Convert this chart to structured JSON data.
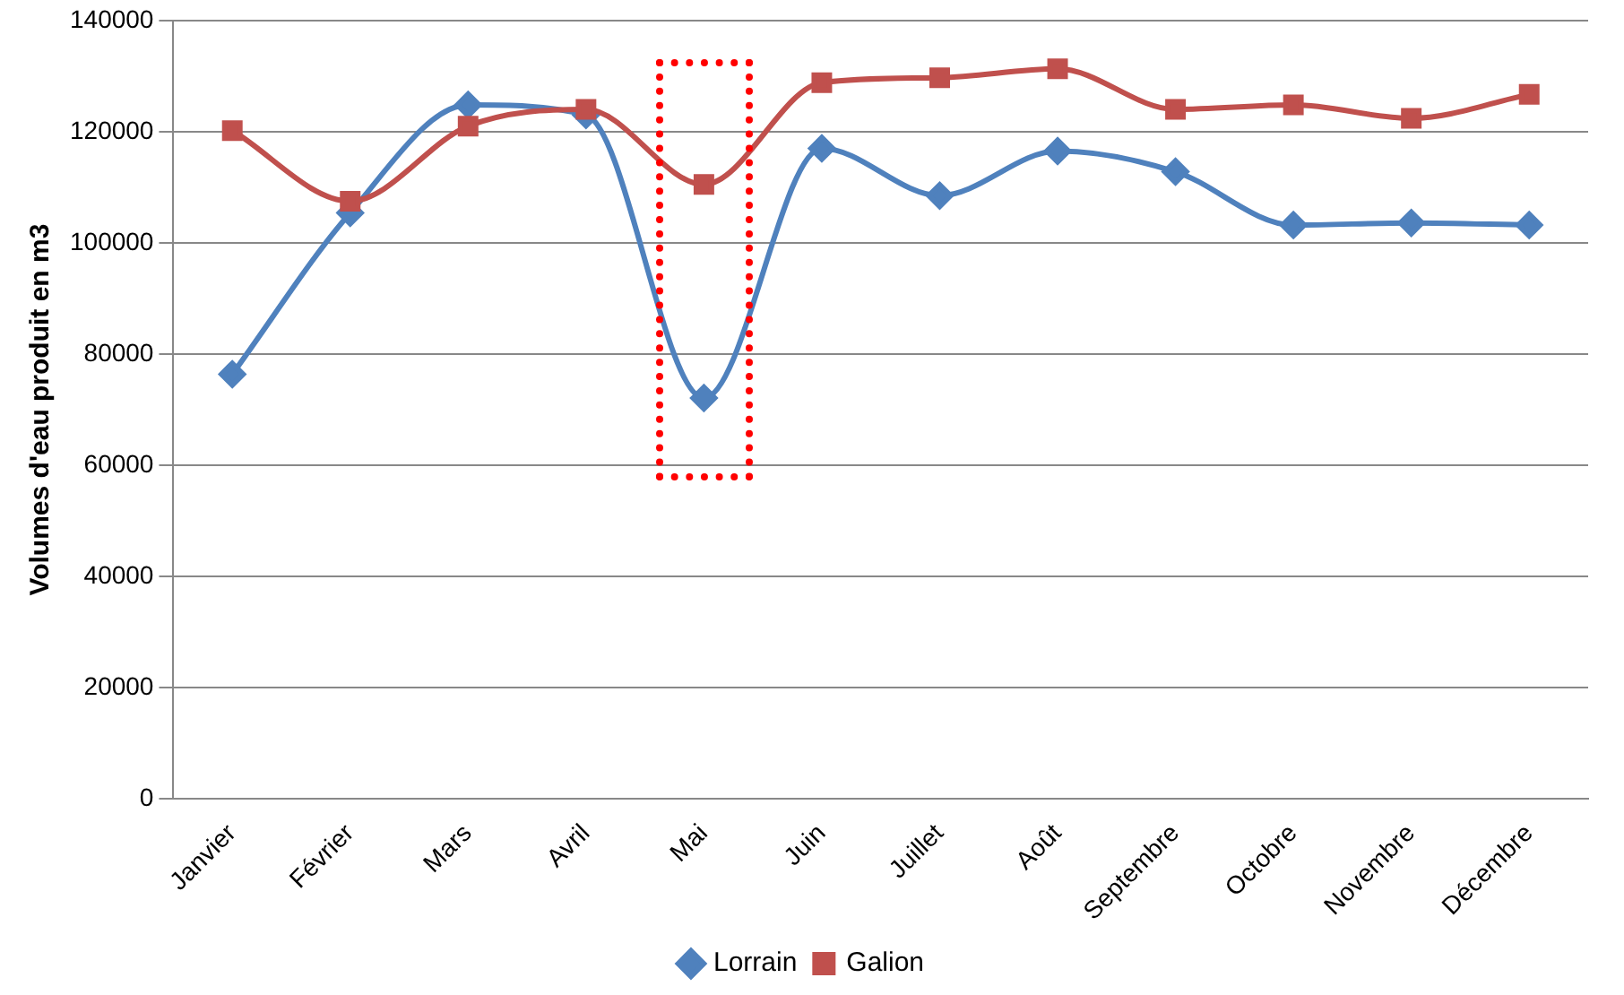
{
  "chart_data": {
    "type": "line",
    "ylabel": "Volumes d'eau produit en m3",
    "categories": [
      "Janvier",
      "Février",
      "Mars",
      "Avril",
      "Mai",
      "Juin",
      "Juillet",
      "Août",
      "Septembre",
      "Octobre",
      "Novembre",
      "Décembre"
    ],
    "series": [
      {
        "name": "Lorrain",
        "color": "#4f81bd",
        "marker": "diamond",
        "values": [
          76400,
          105400,
          124800,
          123000,
          72100,
          117000,
          108500,
          116500,
          112800,
          103200,
          103600,
          103200
        ]
      },
      {
        "name": "Galion",
        "color": "#c0504d",
        "marker": "square",
        "values": [
          120200,
          107500,
          121000,
          124000,
          110500,
          128800,
          129700,
          131300,
          124000,
          124800,
          122400,
          126700
        ]
      }
    ],
    "ylim": [
      0,
      140000
    ],
    "yticks": [
      0,
      20000,
      40000,
      60000,
      80000,
      100000,
      120000,
      140000
    ],
    "grid": "y",
    "legend": "bottom"
  }
}
